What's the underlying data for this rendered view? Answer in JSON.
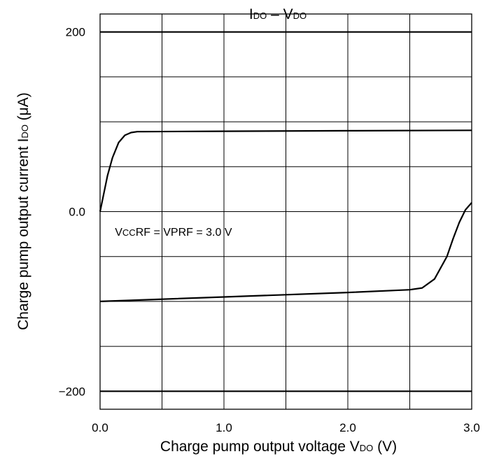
{
  "chart_data": {
    "type": "line",
    "title": {
      "main": "I",
      "sub": "DO",
      "dash": " – ",
      "main2": "V",
      "sub2": "DO"
    },
    "xlabel": {
      "text": "Charge pump output voltage  V",
      "sub": "DO",
      "unit": " (V)"
    },
    "ylabel": {
      "text": "Charge pump output current  I",
      "sub": "DO",
      "unit": " (μA)"
    },
    "xlim": [
      0,
      3
    ],
    "ylim": [
      -220,
      220
    ],
    "x_ticks": [
      {
        "value": 0,
        "label": "0.0"
      },
      {
        "value": 1,
        "label": "1.0"
      },
      {
        "value": 2,
        "label": "2.0"
      },
      {
        "value": 3,
        "label": "3.0"
      }
    ],
    "y_ticks": [
      {
        "value": 200,
        "label": "200"
      },
      {
        "value": 0,
        "label": "0.0"
      },
      {
        "value": -200,
        "label": "−200"
      }
    ],
    "x_grid": [
      0,
      0.5,
      1,
      1.5,
      2,
      2.5,
      3
    ],
    "y_grid": [
      -200,
      -150,
      -100,
      -50,
      0,
      50,
      100,
      150,
      200
    ],
    "grid": true,
    "annotation": {
      "p1": "V",
      "p1sub": "CC",
      "p2": "RF = VPRF = 3.0 V",
      "x": 0.12,
      "y": -27
    },
    "series": [
      {
        "points": [
          [
            0,
            0
          ],
          [
            0.03,
            20
          ],
          [
            0.06,
            40
          ],
          [
            0.1,
            60
          ],
          [
            0.15,
            77
          ],
          [
            0.2,
            85
          ],
          [
            0.25,
            88
          ],
          [
            0.3,
            89
          ],
          [
            0.35,
            89
          ],
          [
            1.0,
            89.5
          ],
          [
            2.0,
            90
          ],
          [
            3.0,
            90.5
          ]
        ]
      },
      {
        "points": [
          [
            0,
            -100
          ],
          [
            1.0,
            -95
          ],
          [
            2.0,
            -90
          ],
          [
            2.5,
            -87
          ],
          [
            2.6,
            -85
          ],
          [
            2.7,
            -75
          ],
          [
            2.8,
            -50
          ],
          [
            2.85,
            -30
          ],
          [
            2.9,
            -12
          ],
          [
            2.95,
            2
          ],
          [
            3.0,
            10
          ]
        ]
      }
    ]
  }
}
